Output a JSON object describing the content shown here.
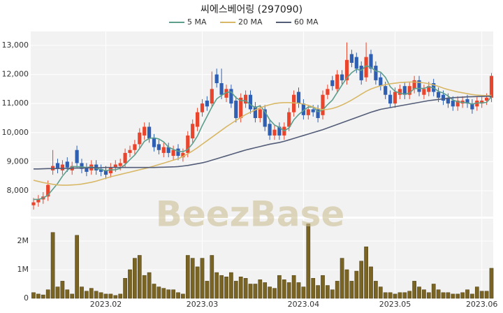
{
  "chart_data": [
    {
      "type": "candlestick",
      "title": "씨에스베어링 (297090)",
      "watermark": "BeezBase",
      "up_color": "#e8452c",
      "down_color": "#2f5fb3",
      "grid": true,
      "categories": [
        null,
        null,
        null,
        null,
        null,
        null,
        null,
        null,
        null,
        null,
        null,
        null,
        null,
        null,
        null,
        "2023.02",
        null,
        null,
        null,
        null,
        null,
        null,
        null,
        null,
        null,
        null,
        null,
        null,
        null,
        null,
        null,
        null,
        null,
        null,
        null,
        "2023.03",
        null,
        null,
        null,
        null,
        null,
        null,
        null,
        null,
        null,
        null,
        null,
        null,
        null,
        null,
        null,
        null,
        null,
        null,
        null,
        null,
        "2023.04",
        null,
        null,
        null,
        null,
        null,
        null,
        null,
        null,
        null,
        null,
        null,
        null,
        null,
        null,
        null,
        null,
        null,
        null,
        "2023.05",
        null,
        null,
        null,
        null,
        null,
        null,
        null,
        null,
        null,
        null,
        null,
        null,
        null,
        null,
        null,
        null,
        null,
        "2023.06",
        null,
        null
      ],
      "open": [
        7500,
        7600,
        7700,
        7800,
        8700,
        8950,
        8700,
        9000,
        8700,
        9400,
        8950,
        8800,
        8700,
        8900,
        8750,
        8700,
        8600,
        8800,
        8850,
        8950,
        9300,
        9400,
        9600,
        9900,
        10200,
        9800,
        9600,
        9300,
        9500,
        9200,
        9450,
        9150,
        9300,
        9800,
        10200,
        10700,
        11100,
        11000,
        12000,
        11700,
        11200,
        11500,
        11100,
        10500,
        11000,
        11300,
        10900,
        10500,
        10800,
        10300,
        9900,
        10200,
        9900,
        10200,
        10700,
        11400,
        11000,
        10600,
        10800,
        10800,
        10600,
        11300,
        11800,
        11500,
        12000,
        11800,
        12700,
        12600,
        12300,
        11900,
        12700,
        12300,
        11900,
        11600,
        11300,
        11000,
        11300,
        11600,
        11300,
        11500,
        11800,
        11300,
        11400,
        11700,
        11400,
        11300,
        11200,
        11100,
        10900,
        11000,
        11150,
        11000,
        10900,
        11000,
        11100,
        11200
      ],
      "high": [
        7750,
        7850,
        7950,
        8350,
        9400,
        9100,
        9050,
        9150,
        9000,
        9550,
        9100,
        8950,
        9050,
        9050,
        8900,
        8850,
        8950,
        9050,
        9100,
        9450,
        9550,
        9750,
        10150,
        10350,
        10350,
        9950,
        9750,
        9650,
        9650,
        9550,
        9600,
        9450,
        10050,
        10450,
        10850,
        11150,
        11250,
        12100,
        12200,
        12200,
        11650,
        11650,
        11250,
        11350,
        11450,
        11450,
        11050,
        10950,
        10950,
        10450,
        10250,
        10350,
        10350,
        10850,
        11450,
        11550,
        11150,
        10950,
        10950,
        10950,
        11450,
        11650,
        11950,
        12150,
        12150,
        13100,
        12850,
        12750,
        12450,
        13100,
        12850,
        12450,
        12050,
        11750,
        11450,
        11550,
        11650,
        11750,
        11750,
        11950,
        11950,
        11650,
        11750,
        11850,
        11550,
        11450,
        11350,
        11250,
        11250,
        11250,
        11300,
        11150,
        11250,
        11250,
        11350,
        12050
      ],
      "low": [
        7350,
        7450,
        7550,
        7650,
        8550,
        8600,
        8550,
        8650,
        8550,
        8800,
        8600,
        8500,
        8550,
        8550,
        8500,
        8400,
        8450,
        8650,
        8700,
        8800,
        9150,
        9250,
        9450,
        9750,
        9650,
        9350,
        9250,
        9150,
        9150,
        9050,
        9050,
        9000,
        9150,
        9650,
        10050,
        10550,
        10750,
        10850,
        11550,
        11150,
        11050,
        10850,
        10350,
        10350,
        10850,
        10650,
        10350,
        10350,
        10050,
        9750,
        9750,
        9750,
        9750,
        10050,
        10550,
        10850,
        10450,
        10450,
        10550,
        10350,
        10450,
        11150,
        11450,
        11350,
        11650,
        11650,
        12250,
        12050,
        11650,
        11750,
        12050,
        11650,
        11450,
        11150,
        10850,
        10850,
        11150,
        11150,
        11150,
        11350,
        11250,
        11150,
        11250,
        11250,
        11050,
        10950,
        10850,
        10750,
        10750,
        10850,
        10850,
        10650,
        10750,
        10850,
        10950,
        11050
      ],
      "close": [
        7600,
        7700,
        7800,
        8200,
        8850,
        8750,
        8900,
        8800,
        8850,
        8950,
        8750,
        8650,
        8900,
        8700,
        8650,
        8550,
        8800,
        8900,
        8950,
        9300,
        9400,
        9600,
        10000,
        10200,
        9800,
        9500,
        9400,
        9500,
        9300,
        9400,
        9200,
        9300,
        9900,
        10300,
        10700,
        11000,
        10900,
        11500,
        11700,
        11300,
        11500,
        11000,
        10500,
        11200,
        11300,
        10800,
        10500,
        10800,
        10200,
        9900,
        10100,
        9900,
        10200,
        10700,
        11300,
        11000,
        10600,
        10800,
        10700,
        10500,
        11300,
        11500,
        11600,
        12000,
        11800,
        12500,
        12400,
        12200,
        11800,
        12600,
        12200,
        11800,
        11600,
        11300,
        11000,
        11400,
        11500,
        11300,
        11600,
        11800,
        11400,
        11500,
        11600,
        11400,
        11200,
        11100,
        11000,
        10900,
        11100,
        11100,
        11000,
        10800,
        11100,
        11100,
        11200,
        11950
      ],
      "series": [
        {
          "name": "5 MA",
          "color": "#5d9e8c",
          "values": [
            7700,
            7700,
            7750,
            7850,
            8050,
            8250,
            8500,
            8700,
            8830,
            8830,
            8820,
            8800,
            8820,
            8770,
            8730,
            8690,
            8720,
            8720,
            8770,
            8900,
            9070,
            9230,
            9450,
            9700,
            9800,
            9820,
            9780,
            9680,
            9500,
            9420,
            9360,
            9340,
            9420,
            9620,
            9880,
            10240,
            10560,
            10880,
            11160,
            11280,
            11380,
            11400,
            11200,
            11100,
            11100,
            10960,
            10860,
            10920,
            10720,
            10440,
            10260,
            10180,
            10060,
            10160,
            10440,
            10620,
            10760,
            10880,
            10880,
            10720,
            10780,
            10960,
            11120,
            11380,
            11640,
            11880,
            12060,
            12180,
            12140,
            12300,
            12240,
            12120,
            12080,
            11900,
            11580,
            11420,
            11360,
            11320,
            11360,
            11520,
            11520,
            11520,
            11580,
            11540,
            11420,
            11360,
            11260,
            11120,
            11060,
            11040,
            11020,
            10980,
            11020,
            11020,
            11040,
            11230
          ]
        },
        {
          "name": "20 MA",
          "color": "#d8b866",
          "values": [
            8360,
            8320,
            8280,
            8250,
            8220,
            8200,
            8190,
            8190,
            8200,
            8210,
            8230,
            8260,
            8290,
            8330,
            8380,
            8430,
            8480,
            8520,
            8560,
            8600,
            8640,
            8680,
            8720,
            8760,
            8800,
            8850,
            8900,
            8950,
            9000,
            9050,
            9100,
            9180,
            9270,
            9370,
            9480,
            9600,
            9720,
            9840,
            9960,
            10080,
            10200,
            10310,
            10420,
            10520,
            10620,
            10700,
            10780,
            10850,
            10910,
            10960,
            11000,
            11020,
            11030,
            11030,
            11020,
            11010,
            10980,
            10940,
            10880,
            10820,
            10790,
            10800,
            10830,
            10880,
            10950,
            11030,
            11120,
            11220,
            11320,
            11420,
            11500,
            11560,
            11610,
            11650,
            11680,
            11700,
            11720,
            11730,
            11740,
            11740,
            11730,
            11710,
            11680,
            11640,
            11590,
            11530,
            11480,
            11440,
            11400,
            11370,
            11340,
            11310,
            11290,
            11280,
            11270,
            11280
          ]
        },
        {
          "name": "60 MA",
          "color": "#535d78",
          "values": [
            8750,
            8750,
            8755,
            8760,
            8760,
            8765,
            8770,
            8770,
            8775,
            8780,
            8780,
            8785,
            8790,
            8790,
            8795,
            8800,
            8800,
            8800,
            8800,
            8800,
            8800,
            8800,
            8800,
            8800,
            8800,
            8800,
            8805,
            8810,
            8815,
            8820,
            8830,
            8850,
            8870,
            8900,
            8930,
            8960,
            9000,
            9050,
            9100,
            9150,
            9200,
            9250,
            9300,
            9350,
            9400,
            9440,
            9480,
            9520,
            9560,
            9600,
            9630,
            9660,
            9700,
            9750,
            9800,
            9850,
            9900,
            9950,
            10000,
            10050,
            10100,
            10160,
            10220,
            10280,
            10340,
            10400,
            10460,
            10520,
            10580,
            10640,
            10700,
            10750,
            10800,
            10830,
            10860,
            10890,
            10920,
            10950,
            10980,
            11010,
            11040,
            11070,
            11100,
            11120,
            11140,
            11160,
            11180,
            11200,
            11210,
            11220,
            11230,
            11235,
            11240,
            11245,
            11250,
            11250
          ]
        }
      ],
      "ylim": [
        7110,
        13480
      ],
      "yticks": [
        {
          "value": 8000,
          "label": "8,000"
        },
        {
          "value": 9000,
          "label": "9,000"
        },
        {
          "value": 10000,
          "label": "10,000"
        },
        {
          "value": 11000,
          "label": "11,000"
        },
        {
          "value": 12000,
          "label": "12,000"
        },
        {
          "value": 13000,
          "label": "13,000"
        }
      ]
    },
    {
      "type": "bar",
      "color": "#7a6424",
      "values": [
        200000,
        150000,
        120000,
        300000,
        2300000,
        400000,
        600000,
        300000,
        150000,
        2200000,
        400000,
        250000,
        350000,
        250000,
        200000,
        150000,
        150000,
        100000,
        150000,
        700000,
        1000000,
        1400000,
        1500000,
        800000,
        900000,
        500000,
        400000,
        350000,
        300000,
        300000,
        200000,
        150000,
        1500000,
        1400000,
        1100000,
        1400000,
        600000,
        1500000,
        900000,
        800000,
        750000,
        900000,
        600000,
        750000,
        700000,
        500000,
        500000,
        650000,
        550000,
        400000,
        350000,
        800000,
        650000,
        550000,
        800000,
        550000,
        400000,
        2600000,
        700000,
        450000,
        800000,
        450000,
        300000,
        600000,
        1400000,
        1000000,
        600000,
        950000,
        1300000,
        1800000,
        1100000,
        600000,
        400000,
        200000,
        200000,
        150000,
        200000,
        200000,
        250000,
        600000,
        400000,
        300000,
        200000,
        500000,
        300000,
        200000,
        200000,
        150000,
        150000,
        200000,
        300000,
        150000,
        400000,
        250000,
        250000,
        1050000
      ],
      "ylim": [
        0,
        2780000
      ],
      "yticks": [
        0,
        {
          "value": 1000000,
          "label": "1M"
        },
        {
          "value": 2000000,
          "label": "2M"
        }
      ]
    }
  ]
}
